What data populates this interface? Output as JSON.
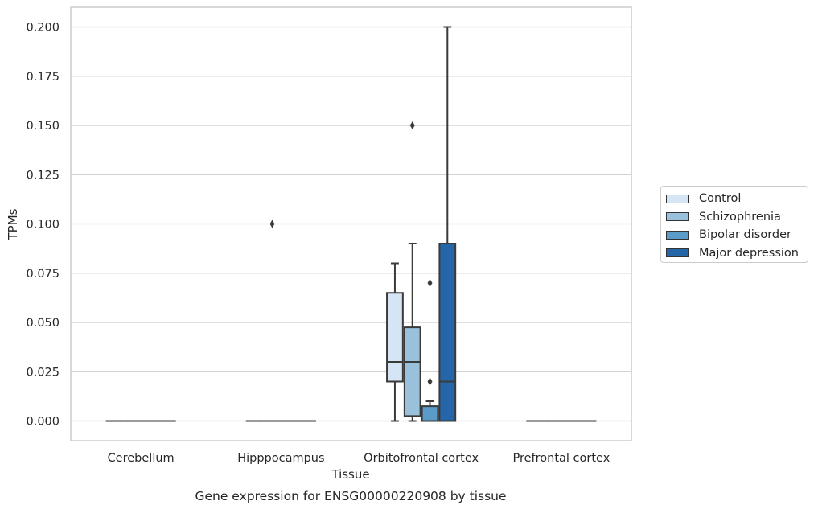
{
  "chart_data": {
    "type": "box",
    "title": "Gene expression for ENSG00000220908 by tissue",
    "xlabel": "Tissue",
    "ylabel": "TPMs",
    "ylim": [
      -0.01,
      0.21
    ],
    "yticks": [
      "0.000",
      "0.025",
      "0.050",
      "0.075",
      "0.100",
      "0.125",
      "0.150",
      "0.175",
      "0.200"
    ],
    "grid": "horizontal",
    "legend_position": "right",
    "categories": [
      "Cerebellum",
      "Hipppocampus",
      "Orbitofrontal cortex",
      "Prefrontal cortex"
    ],
    "series": [
      {
        "name": "Control",
        "color": "#d6e5f4",
        "boxes": [
          {
            "min": 0,
            "q1": 0,
            "median": 0,
            "q3": 0,
            "max": 0,
            "outliers": []
          },
          {
            "min": 0,
            "q1": 0,
            "median": 0,
            "q3": 0,
            "max": 0,
            "outliers": []
          },
          {
            "min": 0,
            "q1": 0.02,
            "median": 0.03,
            "q3": 0.065,
            "max": 0.08,
            "outliers": []
          },
          {
            "min": 0,
            "q1": 0,
            "median": 0,
            "q3": 0,
            "max": 0,
            "outliers": []
          }
        ]
      },
      {
        "name": "Schizophrenia",
        "color": "#99c1dc",
        "boxes": [
          {
            "min": 0,
            "q1": 0,
            "median": 0,
            "q3": 0,
            "max": 0,
            "outliers": []
          },
          {
            "min": 0,
            "q1": 0,
            "median": 0,
            "q3": 0,
            "max": 0,
            "outliers": [
              0.1
            ]
          },
          {
            "min": 0,
            "q1": 0.0025,
            "median": 0.03,
            "q3": 0.0475,
            "max": 0.09,
            "outliers": [
              0.15
            ]
          },
          {
            "min": 0,
            "q1": 0,
            "median": 0,
            "q3": 0,
            "max": 0,
            "outliers": []
          }
        ]
      },
      {
        "name": "Bipolar disorder",
        "color": "#5b9bc9",
        "boxes": [
          {
            "min": 0,
            "q1": 0,
            "median": 0,
            "q3": 0,
            "max": 0,
            "outliers": []
          },
          {
            "min": 0,
            "q1": 0,
            "median": 0,
            "q3": 0,
            "max": 0,
            "outliers": []
          },
          {
            "min": 0,
            "q1": 0,
            "median": 0,
            "q3": 0.0075,
            "max": 0.01,
            "outliers": [
              0.07,
              0.02
            ]
          },
          {
            "min": 0,
            "q1": 0,
            "median": 0,
            "q3": 0,
            "max": 0,
            "outliers": []
          }
        ]
      },
      {
        "name": "Major depression",
        "color": "#2566a8",
        "boxes": [
          {
            "min": 0,
            "q1": 0,
            "median": 0,
            "q3": 0,
            "max": 0,
            "outliers": []
          },
          {
            "min": 0,
            "q1": 0,
            "median": 0,
            "q3": 0,
            "max": 0,
            "outliers": []
          },
          {
            "min": 0,
            "q1": 0,
            "median": 0.02,
            "q3": 0.09,
            "max": 0.2,
            "outliers": []
          },
          {
            "min": 0,
            "q1": 0,
            "median": 0,
            "q3": 0,
            "max": 0,
            "outliers": []
          }
        ]
      }
    ]
  }
}
